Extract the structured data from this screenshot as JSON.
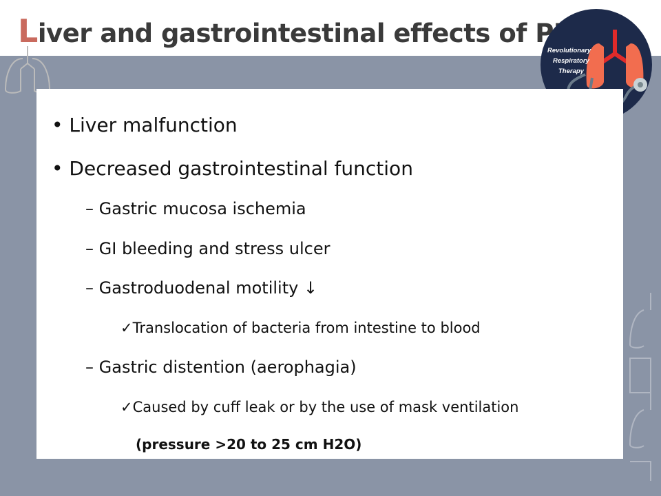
{
  "title": {
    "first_letter": "L",
    "rest": "iver and gastrointestinal effects of PPV",
    "accent_color": "#c96a5e"
  },
  "logo": {
    "lines": [
      "Revolutionary",
      "Respiratory",
      "Therapy"
    ],
    "icon": "lungs-stethoscope-icon"
  },
  "bullets": [
    {
      "marker": "•",
      "text": "Liver malfunction"
    },
    {
      "marker": "•",
      "text": "Decreased gastrointestinal function"
    },
    {
      "marker": "–",
      "text": "Gastric mucosa ischemia"
    },
    {
      "marker": "–",
      "text": "GI bleeding and stress ulcer"
    },
    {
      "marker": "–",
      "text": "Gastroduodenal motility ↓"
    },
    {
      "marker": "✓",
      "text": "Translocation of bacteria from intestine to blood"
    },
    {
      "marker": "–",
      "text": "Gastric distention (aerophagia)"
    },
    {
      "marker": "✓",
      "text": "Caused by cuff leak or by the use of mask ventilation"
    },
    {
      "marker": "",
      "text": "(pressure >20 to 25 cm H2O)"
    }
  ]
}
